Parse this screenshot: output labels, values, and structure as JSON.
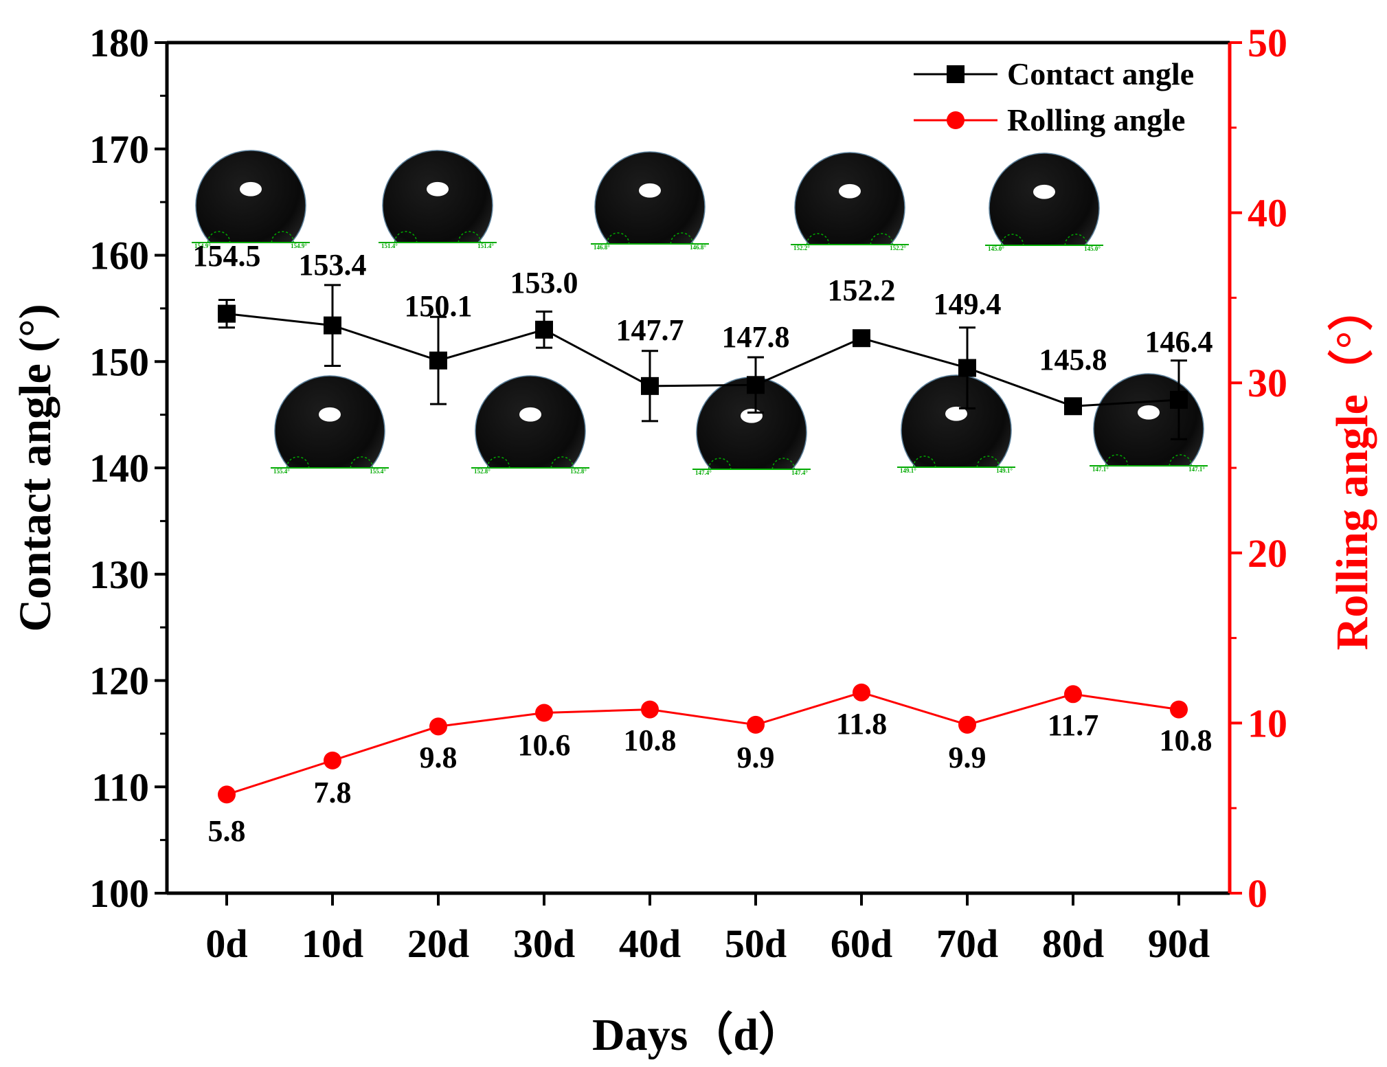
{
  "chart_data": {
    "type": "line",
    "title": "",
    "xlabel": "Days（d）",
    "ylabel": "Contact angle (°)",
    "ylabel_right": "Rolling angle（°）",
    "categories": [
      "0d",
      "10d",
      "20d",
      "30d",
      "40d",
      "50d",
      "60d",
      "70d",
      "80d",
      "90d"
    ],
    "ylim": [
      100,
      180
    ],
    "ylim_right": [
      0,
      50
    ],
    "yticks": [
      "100",
      "110",
      "120",
      "130",
      "140",
      "150",
      "160",
      "170",
      "180"
    ],
    "yticks_right": [
      "0",
      "10",
      "20",
      "30",
      "40",
      "50"
    ],
    "grid": false,
    "legend_position": "top-right",
    "series": [
      {
        "name": "Contact angle",
        "axis": "left",
        "color": "#000000",
        "marker": "square",
        "values": [
          154.5,
          153.4,
          150.1,
          153.0,
          147.7,
          147.8,
          152.2,
          149.4,
          145.8,
          146.4
        ],
        "errors": [
          1.3,
          3.8,
          4.1,
          1.7,
          3.3,
          2.6,
          0.6,
          3.8,
          0.5,
          3.7
        ],
        "labels": [
          "154.5",
          "153.4",
          "150.1",
          "153.0",
          "147.7",
          "147.8",
          "152.2",
          "149.4",
          "145.8",
          "146.4"
        ]
      },
      {
        "name": "Rolling angle",
        "axis": "right",
        "color": "#ff0000",
        "marker": "circle",
        "values": [
          5.8,
          7.8,
          9.8,
          10.6,
          10.8,
          9.9,
          11.8,
          9.9,
          11.7,
          10.8
        ],
        "labels": [
          "5.8",
          "7.8",
          "9.8",
          "10.6",
          "10.8",
          "9.9",
          "11.8",
          "9.9",
          "11.7",
          "10.8"
        ]
      }
    ],
    "droplet_insets": {
      "top_row": [
        "154.9°",
        "151.4°",
        "146.8°",
        "152.2°",
        "145.0°"
      ],
      "bottom_row": [
        "155.4°",
        "152.8°",
        "147.4°",
        "149.1°",
        "147.1°"
      ]
    }
  }
}
